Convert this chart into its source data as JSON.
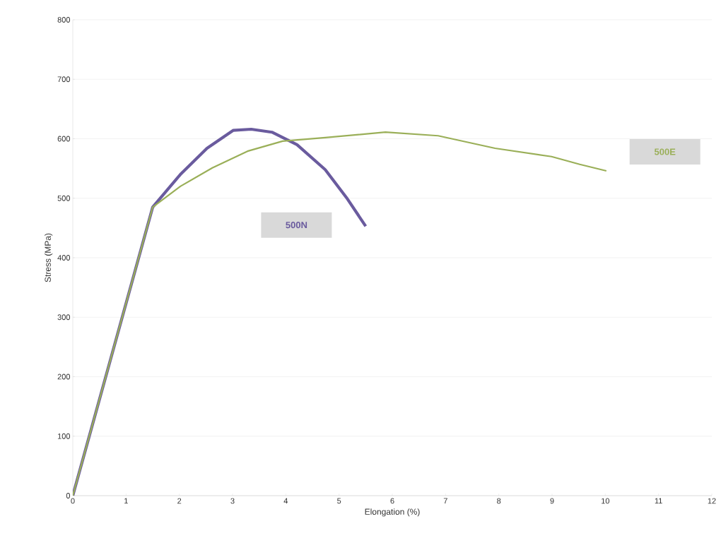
{
  "chart_data": {
    "type": "line",
    "xlabel": "Elongation (%)",
    "ylabel": "Stress (MPa)",
    "xlim": [
      0,
      12
    ],
    "ylim": [
      0,
      800
    ],
    "xticks": [
      0,
      1,
      2,
      3,
      4,
      5,
      6,
      7,
      8,
      9,
      10,
      11,
      12
    ],
    "yticks": [
      0,
      100,
      200,
      300,
      400,
      500,
      600,
      700,
      800
    ],
    "grid": "y",
    "series": [
      {
        "name": "500N",
        "color": "#6a5b9e",
        "x": [
          0,
          1.5,
          2.02,
          2.52,
          3.01,
          3.35,
          3.74,
          4.21,
          4.74,
          5.14,
          5.5
        ],
        "values": [
          0,
          485,
          540,
          584,
          614,
          616,
          611,
          590,
          548,
          501,
          453
        ]
      },
      {
        "name": "500E",
        "color": "#9aaf58",
        "x": [
          0,
          1.5,
          2.02,
          2.62,
          3.28,
          3.94,
          4.74,
          5.87,
          6.86,
          7.93,
          8.99,
          9.52,
          10.02
        ],
        "values": [
          0,
          485,
          520,
          551,
          579,
          596,
          602,
          611,
          605,
          584,
          570,
          557,
          546
        ]
      }
    ]
  }
}
